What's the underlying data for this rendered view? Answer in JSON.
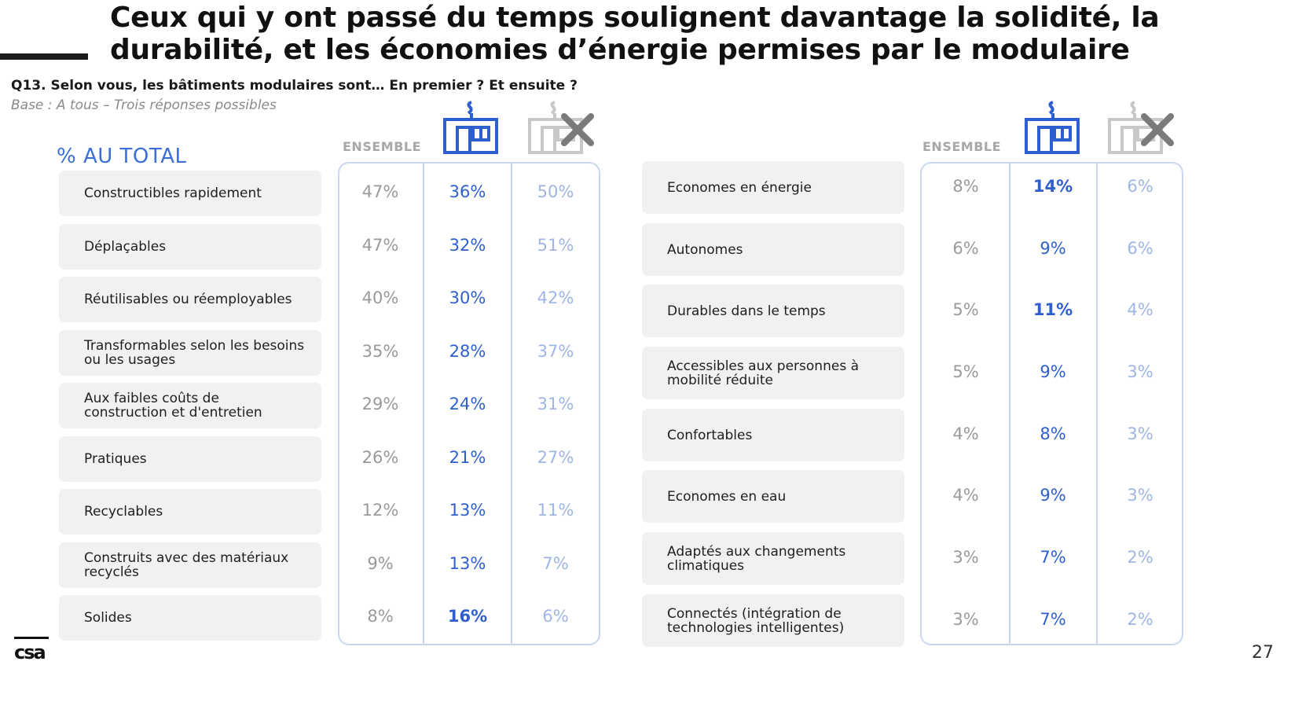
{
  "title": "Ceux qui y ont passé du temps soulignent davantage la solidité, la durabilité, et les économies d’énergie permises par le modulaire",
  "question": "Q13. Selon vous, les bâtiments modulaires sont… En premier ? Et ensuite ?",
  "base": "Base : A tous – Trois réponses possibles",
  "au_total": "% AU TOTAL",
  "col_ensemble": "ENSEMBLE",
  "icons": {
    "modular": "modular-building-icon",
    "no_modular": "modular-building-crossed-icon"
  },
  "colors": {
    "ensemble": "#9a9a9a",
    "modular": "#2f5fcf",
    "non_modular": "#9fb6e4",
    "border": "#c9d8ef"
  },
  "left_rows": [
    {
      "label": "Constructibles rapidement",
      "ensemble": "47%",
      "modular": "36%",
      "non": "50%",
      "bold": false
    },
    {
      "label": "Déplaçables",
      "ensemble": "47%",
      "modular": "32%",
      "non": "51%",
      "bold": false
    },
    {
      "label": "Réutilisables ou réemployables",
      "ensemble": "40%",
      "modular": "30%",
      "non": "42%",
      "bold": false
    },
    {
      "label": "Transformables selon les besoins ou les usages",
      "ensemble": "35%",
      "modular": "28%",
      "non": "37%",
      "bold": false
    },
    {
      "label": "Aux faibles coûts de construction et d'entretien",
      "ensemble": "29%",
      "modular": "24%",
      "non": "31%",
      "bold": false
    },
    {
      "label": "Pratiques",
      "ensemble": "26%",
      "modular": "21%",
      "non": "27%",
      "bold": false
    },
    {
      "label": "Recyclables",
      "ensemble": "12%",
      "modular": "13%",
      "non": "11%",
      "bold": false
    },
    {
      "label": "Construits avec des matériaux recyclés",
      "ensemble": "9%",
      "modular": "13%",
      "non": "7%",
      "bold": false
    },
    {
      "label": "Solides",
      "ensemble": "8%",
      "modular": "16%",
      "non": "6%",
      "bold": true
    }
  ],
  "right_rows": [
    {
      "label": "Economes en énergie",
      "ensemble": "8%",
      "modular": "14%",
      "non": "6%",
      "bold": true
    },
    {
      "label": "Autonomes",
      "ensemble": "6%",
      "modular": "9%",
      "non": "6%",
      "bold": false
    },
    {
      "label": "Durables dans le temps",
      "ensemble": "5%",
      "modular": "11%",
      "non": "4%",
      "bold": true
    },
    {
      "label": "Accessibles aux personnes à mobilité réduite",
      "ensemble": "5%",
      "modular": "9%",
      "non": "3%",
      "bold": false
    },
    {
      "label": "Confortables",
      "ensemble": "4%",
      "modular": "8%",
      "non": "3%",
      "bold": false
    },
    {
      "label": "Economes en eau",
      "ensemble": "4%",
      "modular": "9%",
      "non": "3%",
      "bold": false
    },
    {
      "label": "Adaptés aux changements climatiques",
      "ensemble": "3%",
      "modular": "7%",
      "non": "2%",
      "bold": false
    },
    {
      "label": "Connectés (intégration de technologies intelligentes)",
      "ensemble": "3%",
      "modular": "7%",
      "non": "2%",
      "bold": false
    }
  ],
  "logo_text": "csa",
  "page_number": "27"
}
